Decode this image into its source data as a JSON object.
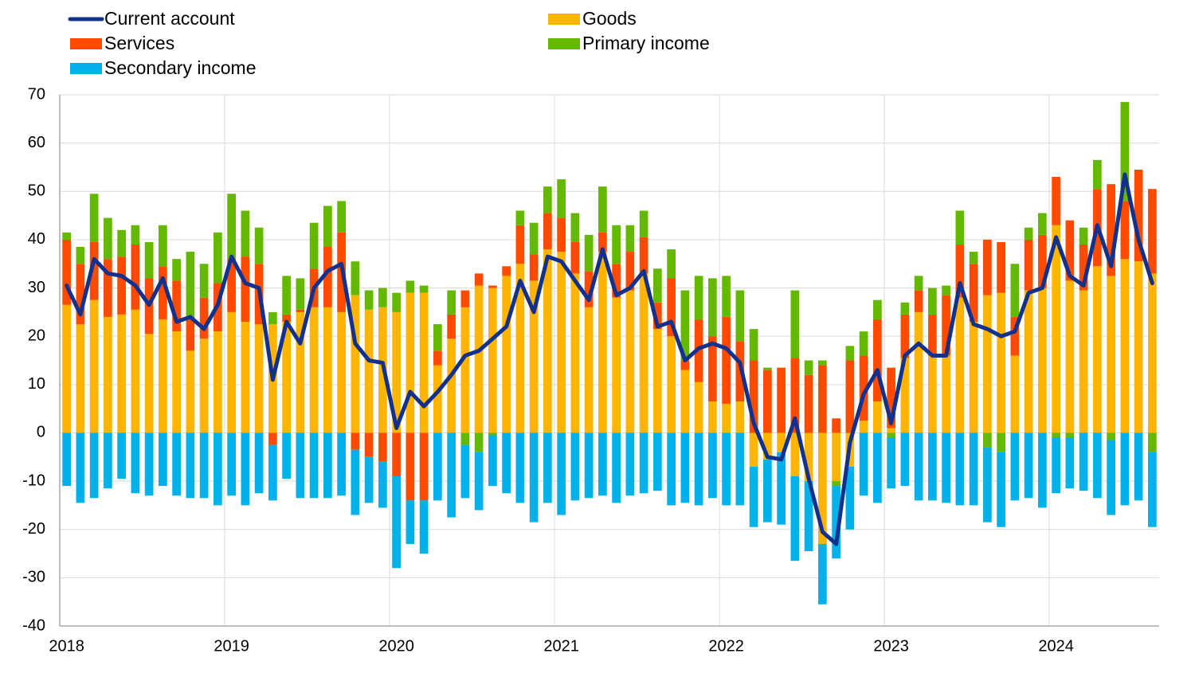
{
  "chart_data": {
    "type": "bar",
    "stacked": true,
    "categories": [
      "2018",
      null,
      null,
      null,
      null,
      null,
      null,
      null,
      null,
      null,
      null,
      null,
      "2019",
      null,
      null,
      null,
      null,
      null,
      null,
      null,
      null,
      null,
      null,
      null,
      "2020",
      null,
      null,
      null,
      null,
      null,
      null,
      null,
      null,
      null,
      null,
      null,
      "2021",
      null,
      null,
      null,
      null,
      null,
      null,
      null,
      null,
      null,
      null,
      null,
      "2022",
      null,
      null,
      null,
      null,
      null,
      null,
      null,
      null,
      null,
      null,
      null,
      "2023",
      null,
      null,
      null,
      null,
      null,
      null,
      null,
      null,
      null,
      null,
      null,
      "2024",
      null,
      null,
      null,
      null,
      null,
      null,
      null
    ],
    "ylim": [
      -40,
      70
    ],
    "yticks": [
      -40,
      -30,
      -20,
      -10,
      0,
      10,
      20,
      30,
      40,
      50,
      60,
      70
    ],
    "grid": true,
    "xgrid": true,
    "series": [
      {
        "name": "Current account",
        "type": "line",
        "color": "#12318c",
        "values": [
          30.5,
          24.5,
          36,
          33,
          32.5,
          30.5,
          26.5,
          32,
          23,
          24,
          21.5,
          26.5,
          36.5,
          31,
          30,
          11,
          23,
          18.5,
          30,
          33.5,
          35,
          18.5,
          15,
          14.5,
          1,
          8.5,
          5.5,
          8.5,
          12,
          16,
          17,
          19.5,
          22,
          31.5,
          25,
          36.5,
          35.5,
          31.5,
          27.5,
          38,
          28.5,
          30,
          33.5,
          22,
          23,
          15,
          17.5,
          18.5,
          17.5,
          14.5,
          2,
          -5,
          -5.5,
          3,
          -9.5,
          -20.5,
          -23,
          -2,
          8,
          13,
          2,
          16,
          18.5,
          16,
          16,
          31,
          22.5,
          21.5,
          20,
          21,
          29,
          30,
          40.5,
          32.5,
          30.5,
          43,
          34.5,
          53.5,
          40,
          31
        ]
      },
      {
        "name": "Goods",
        "type": "bar",
        "color": "#ffb400",
        "values": [
          26.5,
          22.5,
          27.5,
          24,
          24.5,
          25.5,
          20.5,
          23.5,
          21,
          17,
          19.5,
          21,
          25,
          23,
          22.5,
          22.5,
          23,
          25,
          26,
          26,
          25,
          28.5,
          25.5,
          26,
          25,
          29,
          29,
          14,
          19.5,
          26,
          30.5,
          30,
          32.5,
          35,
          31.5,
          38,
          37.5,
          33,
          26,
          37.5,
          28,
          29.5,
          33,
          21.5,
          20,
          13,
          10.5,
          6.5,
          6,
          6.5,
          -7,
          -5.5,
          -4,
          -9,
          -10,
          -23,
          -10,
          -7,
          2.5,
          6.5,
          1,
          15.5,
          25,
          16,
          16,
          28,
          23,
          28.5,
          29,
          16,
          29.5,
          30,
          43,
          31.5,
          29.5,
          34.5,
          32.5,
          36,
          35.5,
          33
        ]
      },
      {
        "name": "Services",
        "type": "bar",
        "color": "#ff4b00",
        "values": [
          13.5,
          12.5,
          12,
          12,
          12,
          13.5,
          11.5,
          11,
          10.5,
          7,
          8.5,
          10,
          11,
          13.5,
          12.5,
          -2.5,
          1.5,
          0.5,
          8,
          12.5,
          16.5,
          -3.5,
          -5,
          -6,
          -9,
          -14,
          -14,
          3,
          5,
          3.5,
          2.5,
          0.5,
          2,
          8,
          5.5,
          7.5,
          7,
          6.5,
          7.5,
          4,
          7,
          8,
          7.5,
          5.5,
          12,
          2,
          13,
          13.5,
          18,
          12.5,
          15,
          13,
          13.5,
          15.5,
          12,
          14,
          3,
          15,
          13.5,
          17,
          12.5,
          9,
          4.5,
          8.5,
          12.5,
          11,
          12,
          11.5,
          10.5,
          8,
          10.5,
          11,
          10,
          12.5,
          9.5,
          16,
          19,
          12,
          19,
          17.5
        ]
      },
      {
        "name": "Primary income",
        "type": "bar",
        "color": "#65b800",
        "values": [
          1.5,
          3.5,
          10,
          8.5,
          5.5,
          4,
          7.5,
          8.5,
          4.5,
          13.5,
          7,
          10.5,
          13.5,
          9.5,
          7.5,
          2.5,
          8,
          6.5,
          9.5,
          8.5,
          6.5,
          7,
          4,
          4,
          4,
          2.5,
          1.5,
          5.5,
          5,
          -2.5,
          -4,
          -0.5,
          0,
          3,
          6.5,
          5.5,
          8,
          6,
          7.5,
          9.5,
          8,
          5.5,
          5.5,
          7,
          6,
          14.5,
          9,
          12,
          8.5,
          10.5,
          6.5,
          0.5,
          0,
          14,
          3,
          1,
          -1,
          3,
          5,
          4,
          -1,
          2.5,
          3,
          5.5,
          2,
          7,
          2.5,
          -3,
          -4,
          11,
          2.5,
          4.5,
          -1,
          -1,
          3.5,
          6,
          -1.5,
          20.5,
          0,
          -4
        ]
      },
      {
        "name": "Secondary income",
        "type": "bar",
        "color": "#00b1ea",
        "values": [
          -11,
          -14.5,
          -13.5,
          -11.5,
          -9.5,
          -12.5,
          -13,
          -11,
          -13,
          -13.5,
          -13.5,
          -15,
          -13,
          -15,
          -12.5,
          -11.5,
          -9.5,
          -13.5,
          -13.5,
          -13.5,
          -13,
          -13.5,
          -9.5,
          -9.5,
          -19,
          -9,
          -11,
          -14,
          -17.5,
          -11,
          -12,
          -10.5,
          -12.5,
          -14.5,
          -18.5,
          -14.5,
          -17,
          -14,
          -13.5,
          -13,
          -14.5,
          -13,
          -12.5,
          -12,
          -15,
          -14.5,
          -15,
          -13.5,
          -15,
          -15,
          -12.5,
          -13,
          -15,
          -17.5,
          -14.5,
          -12.5,
          -15,
          -13,
          -13,
          -14.5,
          -10.5,
          -11,
          -14,
          -14,
          -14.5,
          -15,
          -15,
          -15.5,
          -15.5,
          -14,
          -13.5,
          -15.5,
          -11.5,
          -10.5,
          -12,
          -13.5,
          -15.5,
          -15,
          -14,
          -15.5
        ]
      }
    ]
  }
}
